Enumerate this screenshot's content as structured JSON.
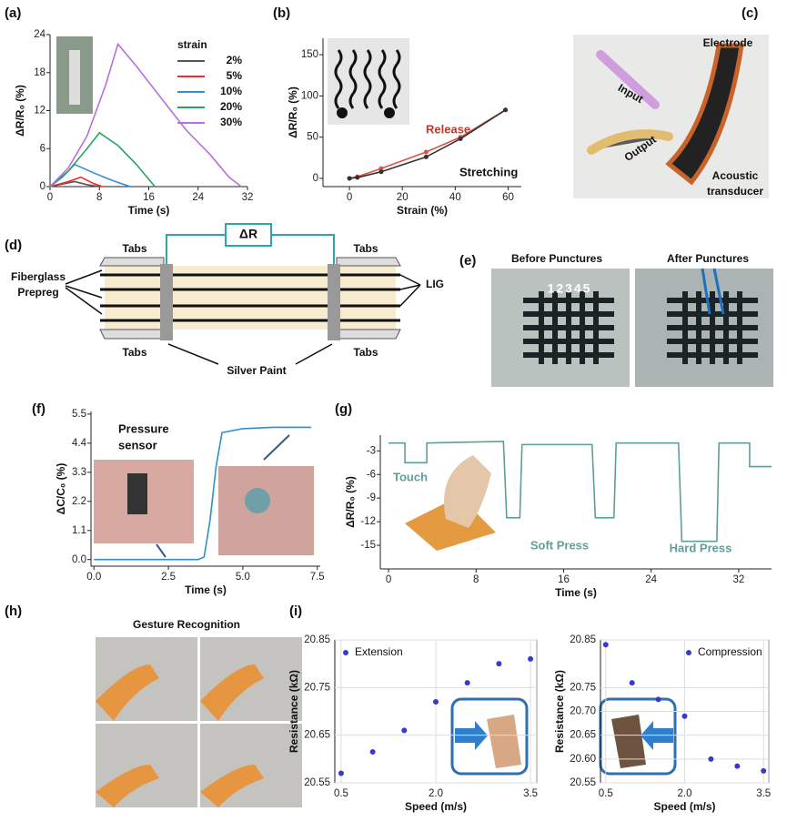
{
  "panel_labels": [
    "(a)",
    "(b)",
    "(c)",
    "(d)",
    "(e)",
    "(f)",
    "(g)",
    "(h)",
    "(i)"
  ],
  "panel_c": {
    "electrode": "Electrode",
    "input": "Input",
    "output": "Output",
    "acoustic_transducer": [
      "Acoustic",
      "transducer"
    ]
  },
  "panel_d": {
    "delta_r": "ΔR",
    "tabs": [
      "Tabs",
      "Tabs",
      "Tabs",
      "Tabs"
    ],
    "fiberglass_prepreg": [
      "Fiberglass",
      "Prepreg"
    ],
    "lig": "LIG",
    "silver_paint": "Silver Paint"
  },
  "panel_e": {
    "before": "Before Punctures",
    "after": "After Punctures",
    "numbers": "12345"
  },
  "panel_h": {
    "title": "Gesture Recognition"
  },
  "chart_data": [
    {
      "type": "line",
      "xlabel": "Time (s)",
      "ylabel": "ΔR/R₀ (%)",
      "xlim": [
        0,
        32
      ],
      "ylim": [
        0,
        24
      ],
      "xticks": [
        0,
        8,
        16,
        24,
        32
      ],
      "yticks": [
        0,
        6,
        12,
        18,
        24
      ],
      "legend_title": "strain",
      "legend": "upper right",
      "series": [
        {
          "name": "2%",
          "color": "#555555",
          "x": [
            0,
            2,
            4,
            6,
            8
          ],
          "values": [
            0,
            0.4,
            0.8,
            0.3,
            0
          ]
        },
        {
          "name": "5%",
          "color": "#e8312f",
          "x": [
            0,
            3,
            5,
            7,
            8.5
          ],
          "values": [
            0,
            0.8,
            1.5,
            0.5,
            0
          ]
        },
        {
          "name": "10%",
          "color": "#2f8fdc",
          "x": [
            0,
            2,
            4,
            7,
            10,
            13
          ],
          "values": [
            0,
            1.5,
            3.5,
            2.2,
            1,
            0
          ]
        },
        {
          "name": "20%",
          "color": "#2aa35a",
          "x": [
            0,
            3,
            6,
            8,
            11,
            14,
            17
          ],
          "values": [
            0,
            2.5,
            6,
            8.5,
            6.5,
            3.5,
            0
          ]
        },
        {
          "name": "30%",
          "color": "#b76fe0",
          "x": [
            0,
            3,
            6,
            9,
            11,
            14,
            18,
            22,
            26,
            29,
            31
          ],
          "values": [
            0,
            3,
            8,
            16,
            22.5,
            19,
            14,
            9,
            5,
            1.5,
            0
          ]
        }
      ]
    },
    {
      "type": "line",
      "markers": true,
      "xlabel": "Strain (%)",
      "ylabel": "ΔR/R₀ (%)",
      "xlim": [
        -10,
        65
      ],
      "ylim": [
        -10,
        170
      ],
      "xticks": [
        0,
        20,
        40,
        60
      ],
      "yticks": [
        0,
        50,
        100,
        150
      ],
      "annotations": [
        "Release",
        "Stretching"
      ],
      "series": [
        {
          "color": "#d9534f",
          "x": [
            0,
            3,
            12,
            29,
            42,
            59
          ],
          "values": [
            0,
            2,
            12,
            32,
            50,
            83
          ]
        },
        {
          "color": "#333333",
          "x": [
            0,
            3,
            12,
            29,
            42,
            59
          ],
          "values": [
            0,
            1,
            8,
            26,
            48,
            83
          ]
        }
      ]
    },
    {
      "type": "line",
      "xlabel": "Time (s)",
      "ylabel": "ΔC/C₀ (%)",
      "xlim": [
        -0.1,
        7.6
      ],
      "ylim": [
        -0.25,
        5.6
      ],
      "xticks": [
        {
          "value": 0,
          "label": "0.0"
        },
        2.5,
        {
          "value": 5,
          "label": "5.0"
        },
        7.5
      ],
      "yticks": [
        {
          "value": 0,
          "label": "0.0"
        },
        1.1,
        2.2,
        3.3,
        4.4,
        5.5
      ],
      "annotations": [
        "Pressure",
        "sensor"
      ],
      "series": [
        {
          "color": "#2f8fc8",
          "x": [
            0,
            3.5,
            3.7,
            3.9,
            4.1,
            4.3,
            5,
            6,
            7.3
          ],
          "values": [
            0,
            0,
            0.1,
            1.5,
            3.5,
            4.8,
            4.95,
            5,
            5
          ]
        }
      ]
    },
    {
      "type": "line",
      "xlabel": "Time (s)",
      "ylabel": "ΔR/R₀ (%)",
      "xlim": [
        -0.75,
        35
      ],
      "ylim": [
        -18,
        -1
      ],
      "xticks": [
        0,
        8,
        16,
        24,
        32
      ],
      "yticks": [
        -3,
        -6,
        -9,
        -12,
        -15
      ],
      "annotations": [
        "Touch",
        "Soft Press",
        "Hard Press"
      ],
      "series": [
        {
          "color": "#5f9e9a",
          "x": [
            0,
            1.5,
            1.5,
            3.5,
            3.5,
            10.5,
            10.8,
            12,
            12.2,
            18.6,
            18.9,
            20.6,
            20.8,
            26.5,
            26.8,
            30,
            30.2,
            33,
            33,
            35
          ],
          "values": [
            -2,
            -2,
            -4.5,
            -4.5,
            -2,
            -1.8,
            -11.5,
            -11.5,
            -2.2,
            -2.2,
            -11.5,
            -11.5,
            -2,
            -2,
            -14.5,
            -14.5,
            -2,
            -2,
            -5,
            -5
          ]
        }
      ]
    },
    {
      "type": "scatter",
      "xlabel": "Speed (m/s)",
      "ylabel": "Resistance (kΩ)",
      "xlim": [
        0.4,
        3.6
      ],
      "ylim": [
        20.55,
        20.85
      ],
      "xticks": [
        0.5,
        {
          "value": 2,
          "label": "2.0"
        },
        3.5
      ],
      "yticks": [
        20.55,
        20.65,
        20.75,
        20.85
      ],
      "grid": true,
      "legend": "upper left",
      "series": [
        {
          "name": "Extension",
          "color": "#3a3ac8",
          "x": [
            0.5,
            1,
            1.5,
            2,
            2.5,
            3,
            3.5
          ],
          "values": [
            20.57,
            20.615,
            20.66,
            20.72,
            20.76,
            20.8,
            20.81
          ]
        }
      ]
    },
    {
      "type": "scatter",
      "xlabel": "Speed (m/s)",
      "ylabel": "Resistance (kΩ)",
      "xlim": [
        0.4,
        3.6
      ],
      "ylim": [
        20.55,
        20.85
      ],
      "xticks": [
        0.5,
        {
          "value": 2,
          "label": "2.0"
        },
        3.5
      ],
      "yticks": [
        20.55,
        {
          "value": 20.6,
          "label": "20.60"
        },
        20.65,
        {
          "value": 20.7,
          "label": "20.70"
        },
        20.75,
        20.85
      ],
      "grid": true,
      "legend": "upper right",
      "series": [
        {
          "name": "Compression",
          "color": "#3a3ac8",
          "x": [
            0.5,
            1,
            1.5,
            2,
            2.5,
            3,
            3.5
          ],
          "values": [
            20.84,
            20.76,
            20.725,
            20.69,
            20.6,
            20.585,
            20.575
          ]
        }
      ]
    }
  ]
}
